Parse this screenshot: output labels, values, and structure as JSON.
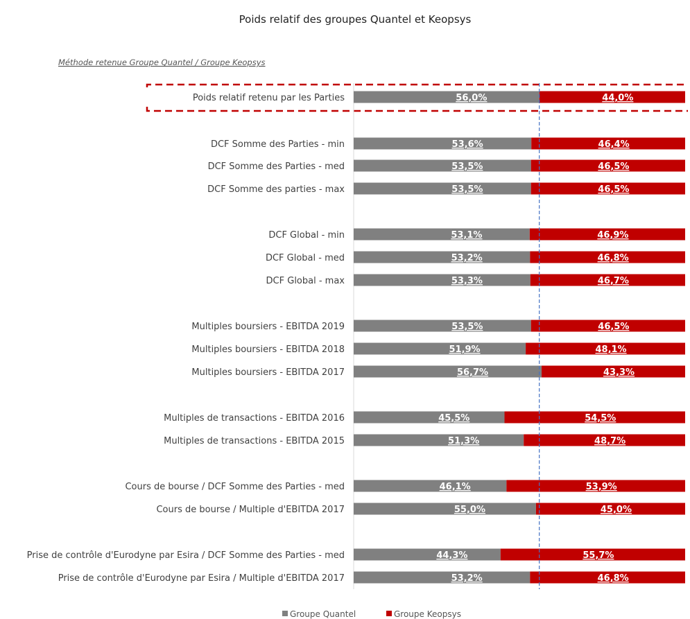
{
  "chart_data": {
    "type": "bar",
    "orientation": "horizontal-stacked-100",
    "title": "Poids relatif des groupes Quantel et Keopsys",
    "subtitle": "Méthode retenue Groupe Quantel / Groupe Keopsys",
    "categories": [
      "Poids relatif retenu par les Parties",
      "DCF Somme des Parties - min",
      "DCF Somme des Parties - med",
      "DCF Somme des parties - max",
      "DCF Global - min",
      "DCF Global - med",
      "DCF Global - max",
      "Multiples boursiers - EBITDA 2019",
      "Multiples boursiers - EBITDA 2018",
      "Multiples boursiers - EBITDA 2017",
      "Multiples de transactions - EBITDA 2016",
      "Multiples de transactions - EBITDA 2015",
      "Cours de bourse / DCF Somme des Parties - med",
      "Cours de bourse / Multiple d'EBITDA 2017",
      "Prise de contrôle d'Eurodyne par Esira / DCF Somme des Parties - med",
      "Prise de contrôle d'Eurodyne par Esira / Multiple d'EBITDA 2017"
    ],
    "series": [
      {
        "name": "Groupe Quantel",
        "color": "#808080",
        "values": [
          56.0,
          53.6,
          53.5,
          53.5,
          53.1,
          53.2,
          53.3,
          53.5,
          51.9,
          56.7,
          45.5,
          51.3,
          46.1,
          55.0,
          44.3,
          53.2
        ],
        "labels": [
          "56,0%",
          "53,6%",
          "53,5%",
          "53,5%",
          "53,1%",
          "53,2%",
          "53,3%",
          "53,5%",
          "51,9%",
          "56,7%",
          "45,5%",
          "51,3%",
          "46,1%",
          "55,0%",
          "44,3%",
          "53,2%"
        ]
      },
      {
        "name": "Groupe Keopsys",
        "color": "#c00000",
        "values": [
          44.0,
          46.4,
          46.5,
          46.5,
          46.9,
          46.8,
          46.7,
          46.5,
          48.1,
          43.3,
          54.5,
          48.7,
          53.9,
          45.0,
          55.7,
          46.8
        ],
        "labels": [
          "44,0%",
          "46,4%",
          "46,5%",
          "46,5%",
          "46,9%",
          "46,8%",
          "46,7%",
          "46,5%",
          "48,1%",
          "43,3%",
          "54,5%",
          "48,7%",
          "53,9%",
          "45,0%",
          "55,7%",
          "46,8%"
        ]
      }
    ],
    "reference_line": 56.0,
    "highlighted_category": "Poids relatif retenu par les Parties",
    "xlim": [
      0,
      100
    ],
    "legend_position": "bottom",
    "grid": false
  }
}
